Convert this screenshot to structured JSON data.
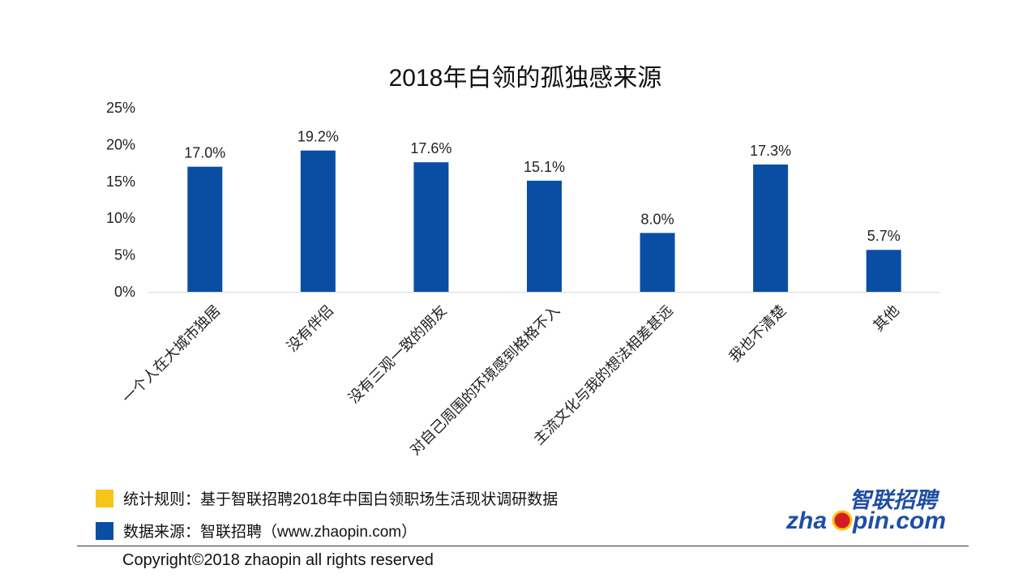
{
  "chart_data": {
    "type": "bar",
    "title": "2018年白领的孤独感来源",
    "categories": [
      "一个人在大城市独居",
      "没有伴侣",
      "没有三观一致的朋友",
      "对自己周围的环境感到格格不入",
      "主流文化与我的想法相差甚远",
      "我也不清楚",
      "其他"
    ],
    "values": [
      17.0,
      19.2,
      17.6,
      15.1,
      8.0,
      17.3,
      5.7
    ],
    "value_labels": [
      "17.0%",
      "19.2%",
      "17.6%",
      "15.1%",
      "8.0%",
      "17.3%",
      "5.7%"
    ],
    "ylim": [
      0,
      25
    ],
    "yticks": [
      0,
      5,
      10,
      15,
      20,
      25
    ],
    "ytick_labels": [
      "0%",
      "5%",
      "10%",
      "15%",
      "20%",
      "25%"
    ],
    "xlabel": "",
    "ylabel": "",
    "grid": false,
    "bar_color": "#0a4ea3"
  },
  "legend": {
    "rule_text": "统计规则：基于智联招聘2018年中国白领职场生活现状调研数据",
    "rule_color": "#f6c518",
    "source_text": "数据来源：智联招聘（www.zhaopin.com）",
    "source_color": "#0a4ea3"
  },
  "footer": {
    "copyright": "Copyright©2018 zhaopin all rights reserved"
  },
  "logo": {
    "top_text": "智联招聘",
    "text_left": "zha",
    "text_right": "pin.com",
    "blue": "#1f4fa3",
    "yellow": "#f6c518",
    "red": "#d41c24"
  }
}
